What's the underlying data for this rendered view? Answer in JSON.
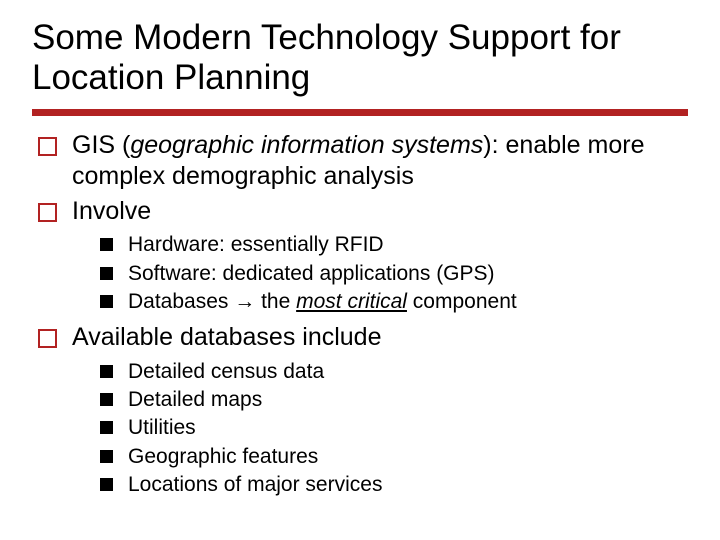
{
  "title": "Some Modern Technology Support for Location Planning",
  "rule_color": "#b22222",
  "rule_height": 7,
  "fonts": {
    "family": "Verdana",
    "title_size": 35,
    "l1_size": 25,
    "l2_size": 21
  },
  "colors": {
    "text": "#000000",
    "background": "#ffffff",
    "accent": "#b22222",
    "square_fill": "#000000"
  },
  "items": [
    {
      "prefix": "GIS (",
      "italic": "geographic information systems",
      "suffix": "): enable more complex demographic analysis"
    },
    {
      "text": "Involve",
      "sub": [
        {
          "text": "Hardware:  essentially RFID"
        },
        {
          "text": "Software:  dedicated applications (GPS)"
        },
        {
          "prefix": "Databases ",
          "arrow": "→",
          "mid": " the ",
          "italic_under": "most critical",
          "suffix": " component"
        }
      ]
    },
    {
      "text": "Available databases include",
      "sub": [
        {
          "text": "Detailed census data"
        },
        {
          "text": "Detailed maps"
        },
        {
          "text": "Utilities"
        },
        {
          "text": "Geographic features"
        },
        {
          "text": "Locations of major services"
        }
      ]
    }
  ]
}
